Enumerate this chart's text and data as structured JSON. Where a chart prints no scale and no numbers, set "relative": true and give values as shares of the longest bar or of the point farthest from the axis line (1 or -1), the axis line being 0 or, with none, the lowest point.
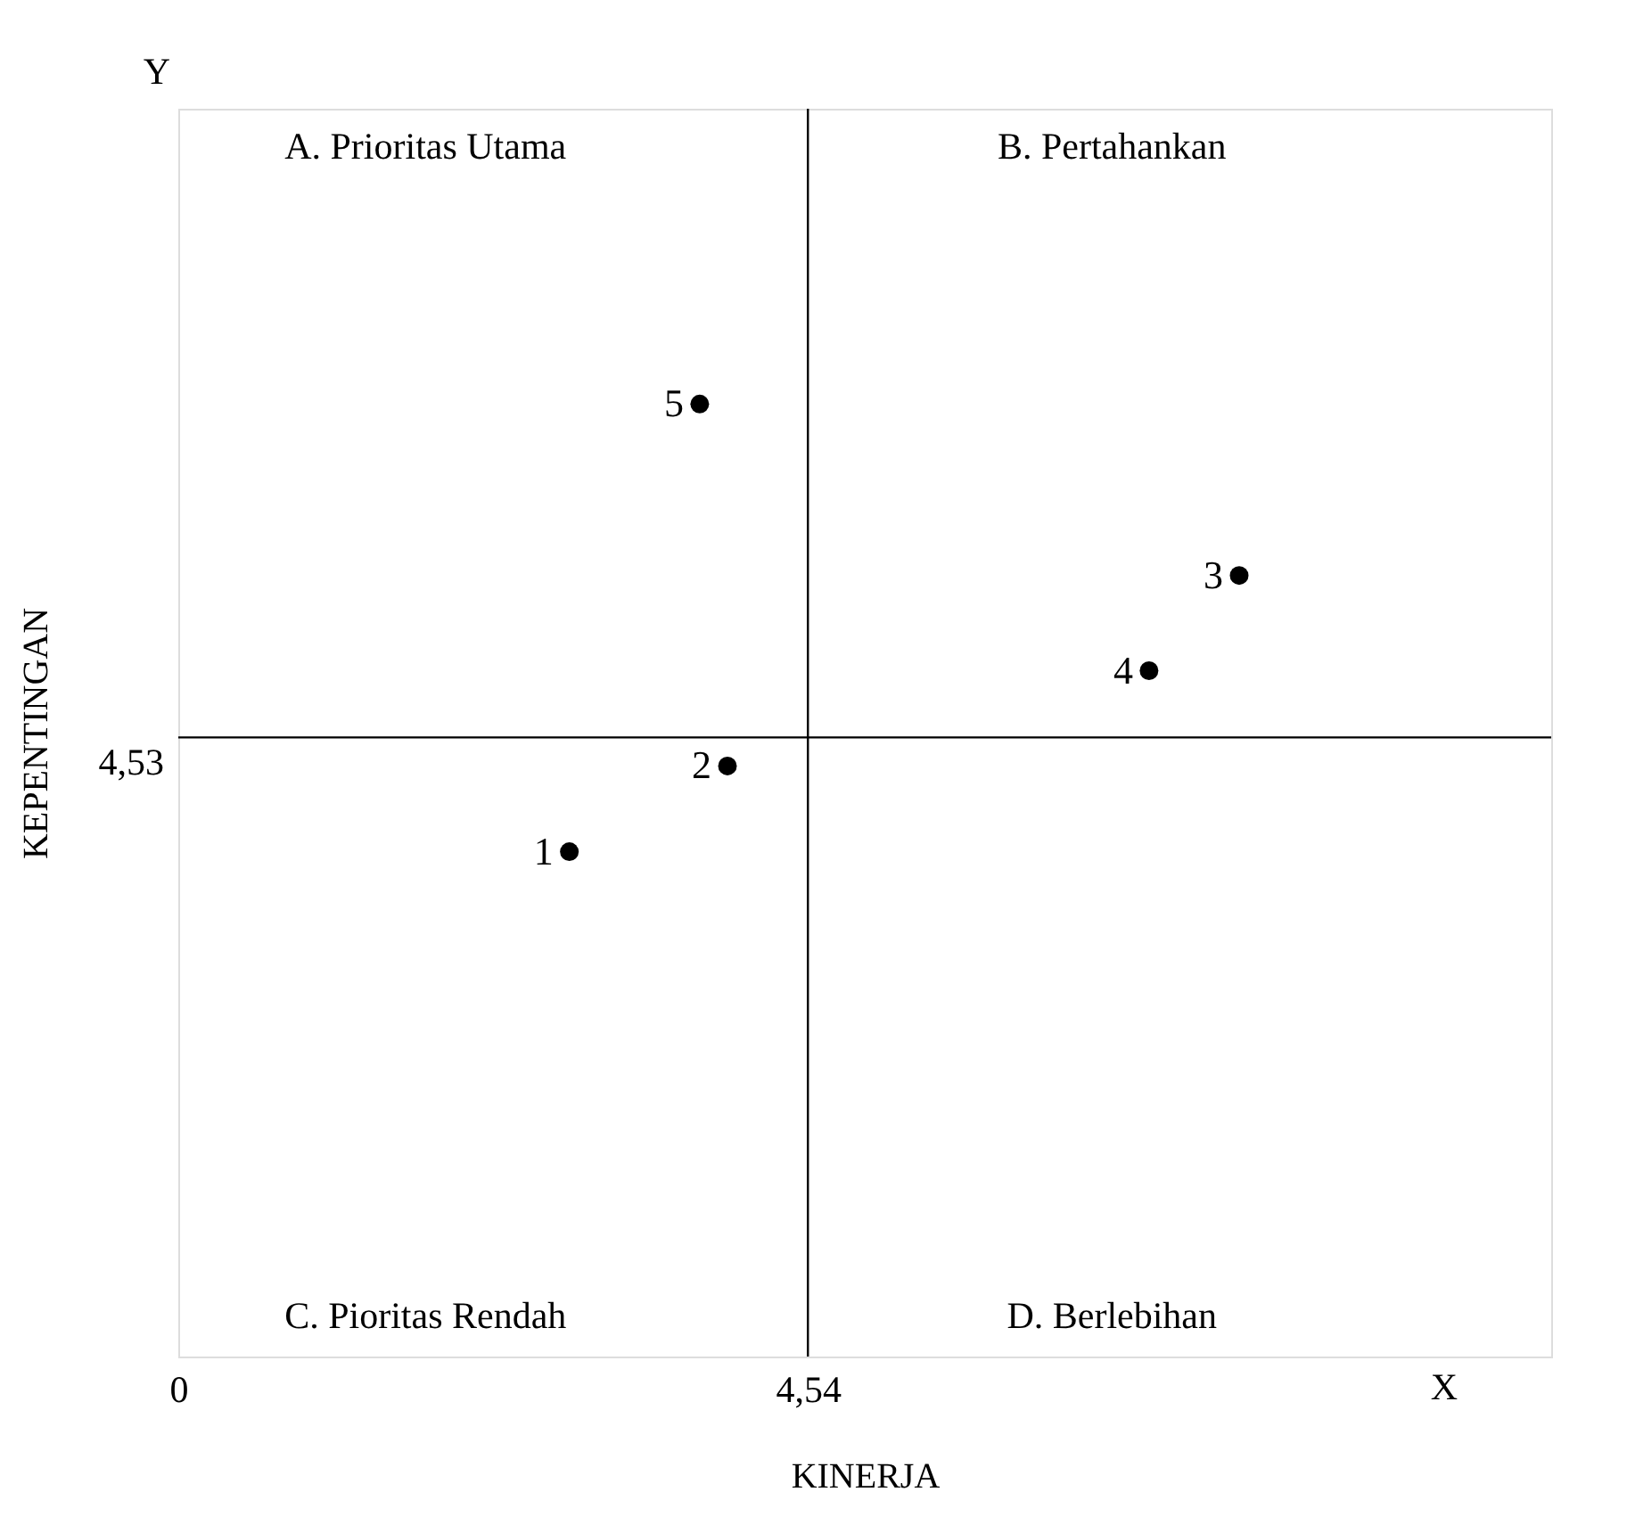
{
  "chart_data": {
    "type": "scatter",
    "xlabel": "KINERJA",
    "ylabel": "KEPENTINGAN",
    "relative": true,
    "x": [
      2.82,
      3.96,
      7.65,
      7.0,
      3.76
    ],
    "series": [
      {
        "color": "#000000",
        "values": [
          0.53,
          0.62,
          0.82,
          0.72,
          1
        ]
      }
    ],
    "marker": "circle",
    "grid": false,
    "legend": false,
    "xlim": [
      0,
      9.9
    ],
    "xticks": [
      0,
      {
        "value": 4.54,
        "label": "4,54"
      }
    ],
    "ref_lines": [
      {
        "axis": "x",
        "value": 4.54,
        "color": "#000000"
      },
      {
        "axis": "y",
        "value": 0.65,
        "color": "#000000"
      }
    ],
    "annotations": [
      "A.  Prioritas Utama",
      "B.  Pertahankan",
      "C. Pioritas Rendah",
      "D. Berlebihan",
      "Y",
      "X",
      "4,53",
      {
        "text": "1",
        "x": 2.82,
        "y": 0.53
      },
      {
        "text": "2",
        "x": 3.96,
        "y": 0.62
      },
      {
        "text": "3",
        "x": 7.65,
        "y": 0.82
      },
      {
        "text": "4",
        "x": 7.0,
        "y": 0.72
      },
      {
        "text": "5",
        "x": 3.76,
        "y": 1
      }
    ]
  }
}
